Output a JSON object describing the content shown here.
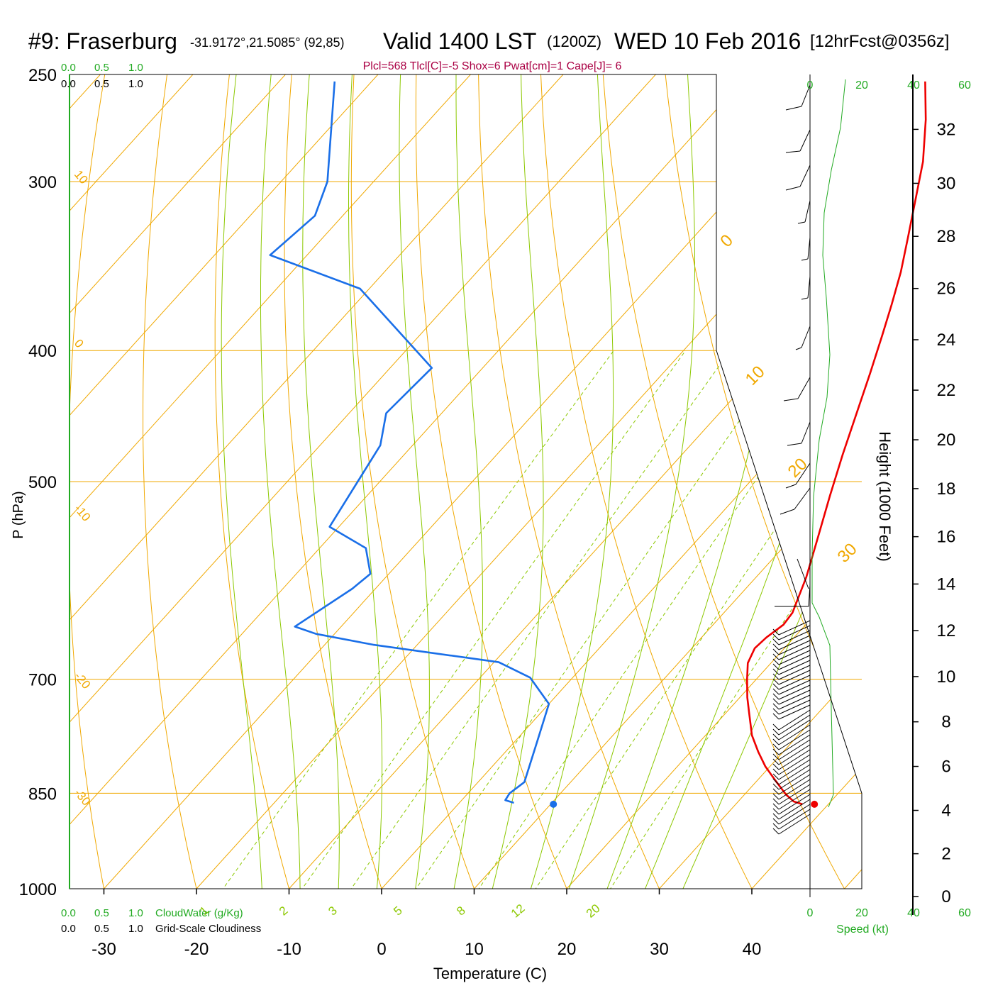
{
  "header": {
    "station": "#9: Fraserburg",
    "coords": "-31.9172°,21.5085° (92,85)",
    "valid": "Valid 1400 LST",
    "utc": "(1200Z)",
    "date": "WED 10 Feb 2016",
    "forecast": "[12hrFcst@0356z]",
    "indices": "Plcl=568 Tlcl[C]=-5 Shox=6 Pwat[cm]=1 Cape[J]= 6"
  },
  "colors": {
    "temperature": "#ee0000",
    "dewpoint": "#1a6fe8",
    "isotherm": "#f0a800",
    "adiabat_dry": "#f0a800",
    "moist_adiabat": "#8cc800",
    "mixing_ratio": "#8cc800",
    "cloud": "#22aa22",
    "indices": "#aa0044"
  },
  "chart_data": {
    "type": "line",
    "title": "#9: Fraserburg",
    "xlabel": "Temperature (C)",
    "ylabel": "P (hPa)",
    "y2label": "Height (1000 Feet)",
    "xlim": [
      -34,
      48
    ],
    "ylim": [
      1050,
      250
    ],
    "x_ticks": [
      "-30",
      "-20",
      "-10",
      "0",
      "10",
      "20",
      "30",
      "40"
    ],
    "y_ticks": [
      "250",
      "300",
      "400",
      "500",
      "700",
      "850",
      "1000"
    ],
    "height_ticks": [
      "0",
      "2",
      "4",
      "6",
      "8",
      "10",
      "12",
      "14",
      "16",
      "18",
      "20",
      "22",
      "24",
      "26",
      "28",
      "30",
      "32"
    ],
    "series": [
      {
        "name": "Temperature",
        "color": "#ee0000",
        "points": [
          [
            37.2,
            866
          ],
          [
            36.0,
            862
          ],
          [
            34.5,
            852
          ],
          [
            32.0,
            832
          ],
          [
            29.5,
            812
          ],
          [
            27.3,
            792
          ],
          [
            25.0,
            770
          ],
          [
            22.4,
            740
          ],
          [
            20.8,
            722
          ],
          [
            19.0,
            700
          ],
          [
            17.5,
            681
          ],
          [
            16.8,
            664
          ],
          [
            17.0,
            652
          ],
          [
            17.6,
            638
          ],
          [
            17.4,
            625
          ],
          [
            15.4,
            588
          ],
          [
            12.8,
            550
          ],
          [
            10.0,
            512
          ],
          [
            7.4,
            478
          ],
          [
            4.9,
            446
          ],
          [
            2.4,
            416
          ],
          [
            0.0,
            390
          ],
          [
            -2.0,
            370
          ],
          [
            -4.2,
            350
          ],
          [
            -6.8,
            330
          ],
          [
            -9.6,
            310
          ],
          [
            -12.6,
            290
          ],
          [
            -16.4,
            270
          ],
          [
            -20.2,
            253
          ]
        ]
      },
      {
        "name": "Dewpoint",
        "color": "#1a6fe8",
        "points": [
          [
            5.9,
            864
          ],
          [
            4.7,
            860
          ],
          [
            4.5,
            850
          ],
          [
            5.0,
            834
          ],
          [
            2.5,
            780
          ],
          [
            0.0,
            730
          ],
          [
            -4.6,
            698
          ],
          [
            -9.5,
            680
          ],
          [
            -24.8,
            660
          ],
          [
            -32.0,
            648
          ],
          [
            -35.0,
            640
          ],
          [
            -32.5,
            600
          ],
          [
            -32.0,
            585
          ],
          [
            -35.0,
            560
          ],
          [
            -41.0,
            540
          ],
          [
            -43.5,
            470
          ],
          [
            -46.0,
            445
          ],
          [
            -45.5,
            412
          ],
          [
            -61.0,
            360
          ],
          [
            -74.0,
            340
          ],
          [
            -73.0,
            318
          ],
          [
            -75.0,
            300
          ],
          [
            -84.0,
            253
          ]
        ]
      }
    ],
    "surface_markers": [
      {
        "name": "Surface temperature",
        "x": 38.5,
        "p": 866
      },
      {
        "name": "Surface dewpoint",
        "x": 10.3,
        "p": 866
      }
    ],
    "temperature_labels": {
      "top": [
        "10",
        "0",
        "-10",
        "-20",
        "-30"
      ],
      "right": [
        "0",
        "10",
        "20",
        "30"
      ]
    },
    "mixing_ratio_labels": [
      "1",
      "2",
      "3",
      "5",
      "8",
      "12",
      "20"
    ],
    "wind_speed_axis": {
      "label": "Speed (kt)",
      "ticks": [
        "0",
        "20",
        "40",
        "60"
      ]
    },
    "cloud_axes": {
      "cloud_water": {
        "label": "CloudWater (g/Kg)",
        "ticks": [
          "0.0",
          "0.5",
          "1.0"
        ]
      },
      "cloudiness": {
        "label": "Grid-Scale Cloudiness",
        "ticks": [
          "0.0",
          "0.5",
          "1.0"
        ]
      }
    },
    "grid": true
  }
}
